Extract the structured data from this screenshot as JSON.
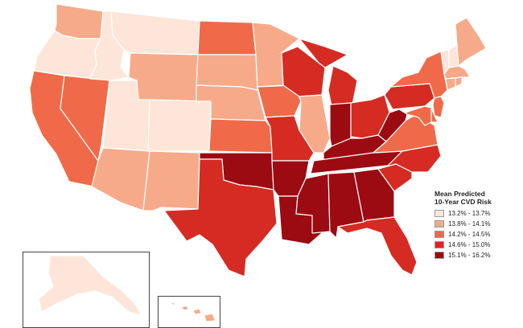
{
  "legend": {
    "title_line1": "Mean Predicted",
    "title_line2": "10-Year CVD Risk",
    "items": [
      {
        "label": "13.2% - 13.7%",
        "color": "#fde6d9"
      },
      {
        "label": "13.8% - 14.1%",
        "color": "#f7aa89"
      },
      {
        "label": "14.2% - 14.5%",
        "color": "#f06a49"
      },
      {
        "label": "14.6% - 15.0%",
        "color": "#d52b22"
      },
      {
        "label": "15.1% - 16.2%",
        "color": "#9c0b12"
      }
    ]
  },
  "states": {
    "WA": 2,
    "OR": 1,
    "CA": 3,
    "NV": 3,
    "ID": 1,
    "MT": 1,
    "WY": 2,
    "UT": 1,
    "CO": 1,
    "AZ": 2,
    "NM": 2,
    "ND": 3,
    "SD": 2,
    "NE": 2,
    "KS": 3,
    "OK": 5,
    "TX": 4,
    "MN": 2,
    "IA": 3,
    "MO": 4,
    "AR": 5,
    "LA": 5,
    "WI": 4,
    "IL": 2,
    "MI": 4,
    "IN": 5,
    "OH": 4,
    "KY": 5,
    "TN": 5,
    "MS": 5,
    "AL": 5,
    "GA": 5,
    "FL": 4,
    "SC": 4,
    "NC": 4,
    "VA": 3,
    "WV": 5,
    "PA": 4,
    "NY": 3,
    "VT": 1,
    "NH": 1,
    "ME": 2,
    "MA": 2,
    "CT": 2,
    "RI": 2,
    "NJ": 3,
    "DE": 3,
    "MD": 3,
    "AK": 1,
    "HI": 2
  }
}
